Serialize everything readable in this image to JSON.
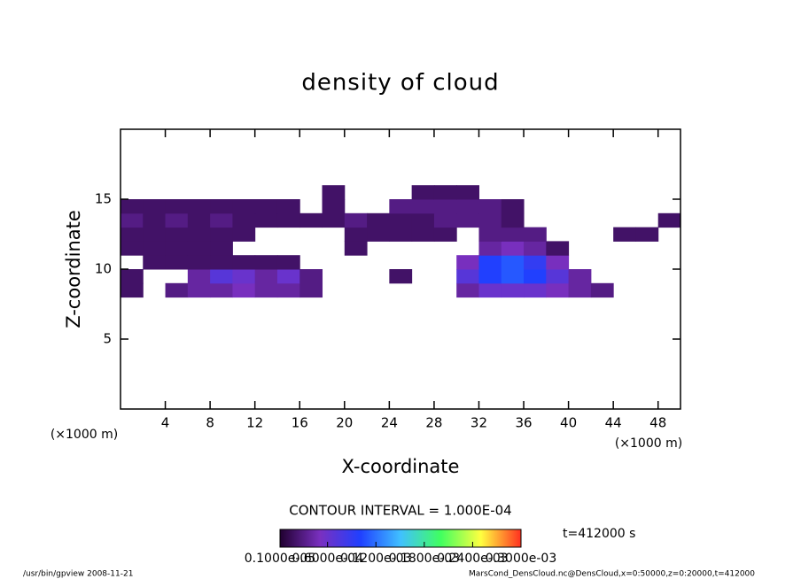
{
  "chart_data": {
    "type": "heatmap",
    "title": "density of cloud",
    "xlabel": "X-coordinate",
    "ylabel": "Z-coordinate",
    "x_unit": "(×1000 m)",
    "y_unit": "(×1000 m)",
    "contour_interval": "CONTOUR INTERVAL = 1.000E-04",
    "time_label": "t=412000 s",
    "footer_left": "/usr/bin/gpview  2008-11-21",
    "footer_right": "MarsCond_DensCloud.nc@DensCloud,x=0:50000,z=0:20000,t=412000",
    "xlim": [
      0,
      50
    ],
    "ylim": [
      0,
      20
    ],
    "xticks": [
      4,
      8,
      12,
      16,
      20,
      24,
      28,
      32,
      36,
      40,
      44,
      48
    ],
    "yticks": [
      5,
      10,
      15
    ],
    "x": [
      1,
      3,
      5,
      7,
      9,
      11,
      13,
      15,
      17,
      19,
      21,
      23,
      25,
      27,
      29,
      31,
      33,
      35,
      37,
      39,
      41,
      43,
      45,
      47,
      49
    ],
    "y": [
      8.5,
      9.5,
      10.5,
      11.5,
      12.5,
      13.5,
      14.5,
      15.5
    ],
    "z": [
      [
        2e-05,
        null,
        3e-05,
        4e-05,
        4e-05,
        5e-05,
        4e-05,
        4e-05,
        3e-05,
        null,
        null,
        null,
        null,
        null,
        null,
        4e-05,
        6e-05,
        6e-05,
        6e-05,
        5e-05,
        4e-05,
        3e-05,
        null,
        null,
        null
      ],
      [
        2e-05,
        null,
        null,
        4e-05,
        7e-05,
        6e-05,
        4e-05,
        6e-05,
        3e-05,
        null,
        null,
        null,
        2e-05,
        null,
        null,
        7e-05,
        0.0001,
        0.00011,
        0.0001,
        7e-05,
        4e-05,
        null,
        null,
        null,
        null
      ],
      [
        null,
        2e-05,
        2e-05,
        2e-05,
        2e-05,
        2e-05,
        2e-05,
        2e-05,
        null,
        null,
        null,
        null,
        null,
        null,
        null,
        5e-05,
        0.0001,
        0.00011,
        9e-05,
        5e-05,
        null,
        null,
        null,
        null,
        null
      ],
      [
        2e-05,
        2e-05,
        2e-05,
        2e-05,
        2e-05,
        null,
        null,
        null,
        null,
        null,
        2e-05,
        null,
        null,
        null,
        null,
        null,
        4e-05,
        5e-05,
        4e-05,
        2e-05,
        null,
        null,
        null,
        null,
        null
      ],
      [
        2e-05,
        2e-05,
        2e-05,
        2e-05,
        2e-05,
        2e-05,
        null,
        null,
        null,
        null,
        2e-05,
        2e-05,
        2e-05,
        2e-05,
        2e-05,
        null,
        3e-05,
        3e-05,
        3e-05,
        null,
        null,
        null,
        2e-05,
        2e-05,
        null
      ],
      [
        3e-05,
        2e-05,
        3e-05,
        2e-05,
        3e-05,
        2e-05,
        2e-05,
        2e-05,
        2e-05,
        2e-05,
        3e-05,
        2e-05,
        2e-05,
        2e-05,
        3e-05,
        3e-05,
        3e-05,
        2e-05,
        null,
        null,
        null,
        null,
        null,
        null,
        2e-05
      ],
      [
        2e-05,
        2e-05,
        2e-05,
        2e-05,
        2e-05,
        2e-05,
        2e-05,
        2e-05,
        null,
        2e-05,
        null,
        null,
        3e-05,
        3e-05,
        3e-05,
        3e-05,
        3e-05,
        2e-05,
        null,
        null,
        null,
        null,
        null,
        null,
        null
      ],
      [
        null,
        null,
        null,
        null,
        null,
        null,
        null,
        null,
        null,
        2e-05,
        null,
        null,
        null,
        2e-05,
        2e-05,
        2e-05,
        null,
        null,
        null,
        null,
        null,
        null,
        null,
        null,
        null
      ]
    ],
    "colormap": [
      "#200030",
      "#7a30c0",
      "#2040ff",
      "#40c0ff",
      "#40ff60",
      "#ffff40",
      "#ff3020"
    ],
    "colorbar_ticks": [
      {
        "value": 1e-06,
        "label": "0.1000e-05"
      },
      {
        "value": 6e-05,
        "label": "0.6000e-04"
      },
      {
        "value": 0.00012,
        "label": "0.1200e-03"
      },
      {
        "value": 0.00018,
        "label": "0.1800e-03"
      },
      {
        "value": 0.00024,
        "label": "0.2400e-03"
      },
      {
        "value": 0.0003,
        "label": "0.3000e-03"
      }
    ]
  }
}
